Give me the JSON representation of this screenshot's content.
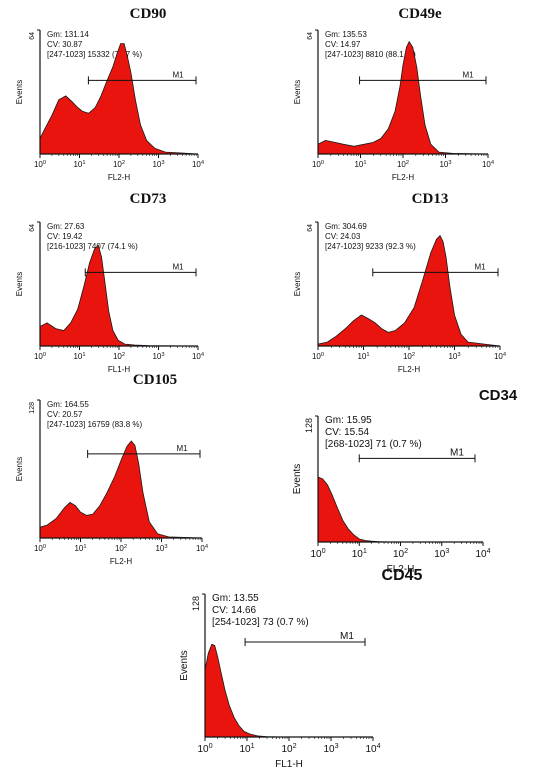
{
  "colors": {
    "fill": "#e8140d",
    "outline": "#1a1a1a",
    "axis": "#111111"
  },
  "chart_data": [
    {
      "type": "area",
      "title": "CD90",
      "xlabel": "FL2-H",
      "ylabel": "Events",
      "xscale": "log",
      "xlim": [
        1,
        10000
      ],
      "ylim": [
        0,
        64
      ],
      "ytick_top": "64",
      "stats": [
        "Gm: 131.14",
        "CV:  30.87",
        "[247-1023] 15332  (76.7 %)"
      ],
      "marker": {
        "label": "M1",
        "x_range": [
          16.8,
          10000
        ],
        "y": 38
      },
      "series": [
        {
          "x": [
            1.0,
            1.4,
            2.0,
            3.0,
            4.5,
            6.5,
            9.0,
            12.0,
            17.0,
            25.0,
            35.0,
            50.0,
            70.0,
            90.0,
            110.0,
            135.0,
            160.0,
            200.0,
            260.0,
            350.0,
            500.0,
            800.0,
            1500.0,
            4000.0,
            10000.0
          ],
          "y": [
            8,
            14,
            20,
            28,
            30,
            27,
            24,
            22,
            21,
            24,
            30,
            38,
            45,
            52,
            57,
            57,
            51,
            42,
            28,
            15,
            7,
            3,
            1,
            0.5,
            0
          ]
        }
      ]
    },
    {
      "type": "area",
      "title": "CD49e",
      "xlabel": "FL2-H",
      "ylabel": "Events",
      "xscale": "log",
      "xlim": [
        1,
        10000
      ],
      "ylim": [
        0,
        64
      ],
      "ytick_top": "64",
      "stats": [
        "Gm: 135.53",
        "CV:  14.97",
        "[247-1023] 8810  (88.1 %)"
      ],
      "marker": {
        "label": "M1",
        "x_range": [
          9.5,
          10000
        ],
        "y": 38
      },
      "series": [
        {
          "x": [
            1.0,
            1.5,
            2.5,
            4.0,
            7.0,
            12.0,
            20.0,
            30.0,
            45.0,
            65.0,
            85.0,
            100.0,
            120.0,
            140.0,
            170.0,
            210.0,
            260.0,
            330.0,
            450.0,
            700.0,
            1500.0,
            10000.0
          ],
          "y": [
            5,
            7,
            6,
            5,
            4,
            5,
            6,
            8,
            13,
            22,
            35,
            46,
            55,
            58,
            55,
            45,
            30,
            15,
            5,
            1,
            0.3,
            0
          ]
        }
      ]
    },
    {
      "type": "area",
      "title": "CD73",
      "xlabel": "FL1-H",
      "ylabel": "Events",
      "xscale": "log",
      "xlim": [
        1,
        10000
      ],
      "ylim": [
        0,
        64
      ],
      "ytick_top": "64",
      "stats": [
        "Gm:   27.63",
        "CV:  19.42",
        "[216-1023] 7407  (74.1 %)"
      ],
      "marker": {
        "label": "M1",
        "x_range": [
          14.0,
          10000
        ],
        "y": 38
      },
      "series": [
        {
          "x": [
            1.0,
            1.5,
            2.5,
            4.0,
            6.0,
            9.0,
            13.0,
            18.0,
            24.0,
            30.0,
            36.0,
            44.0,
            55.0,
            70.0,
            95.0,
            140.0,
            250.0,
            600.0,
            10000.0
          ],
          "y": [
            10,
            12,
            9,
            8,
            12,
            19,
            31,
            43,
            50,
            52,
            46,
            33,
            18,
            8,
            3,
            1,
            0.5,
            0.2,
            0
          ]
        }
      ]
    },
    {
      "type": "area",
      "title": "CD13",
      "xlabel": "FL2-H",
      "ylabel": "Events",
      "xscale": "log",
      "xlim": [
        1,
        10000
      ],
      "ylim": [
        0,
        64
      ],
      "ytick_top": "64",
      "stats": [
        "Gm: 304.69",
        "CV:  24.03",
        "[247-1023] 9233    (92.3 %)"
      ],
      "marker": {
        "label": "M1",
        "x_range": [
          16.0,
          10000
        ],
        "y": 38
      },
      "series": [
        {
          "x": [
            1.0,
            1.6,
            2.5,
            4.0,
            6.0,
            9.0,
            13.0,
            18.0,
            25.0,
            35.0,
            50.0,
            80.0,
            130.0,
            200.0,
            300.0,
            400.0,
            480.0,
            560.0,
            650.0,
            800.0,
            1000.0,
            1400.0,
            2000.0,
            10000.0
          ],
          "y": [
            1,
            2,
            5,
            9,
            13,
            16,
            14,
            12,
            9,
            7,
            8,
            12,
            20,
            34,
            48,
            55,
            57,
            54,
            46,
            30,
            16,
            6,
            2,
            0
          ]
        }
      ]
    },
    {
      "type": "area",
      "title": "CD105",
      "xlabel": "FL2-H",
      "ylabel": "Events",
      "xscale": "log",
      "xlim": [
        1,
        10000
      ],
      "ylim": [
        0,
        128
      ],
      "ytick_top": "128",
      "stats": [
        "Gm: 164.55",
        "CV:  20.57",
        "[247-1023] 16759  (83.8 %)"
      ],
      "marker": {
        "label": "M1",
        "x_range": [
          15.0,
          10000
        ],
        "y": 78
      },
      "series": [
        {
          "x": [
            1.0,
            1.5,
            2.5,
            4.0,
            5.5,
            7.5,
            10.0,
            14.0,
            20.0,
            30.0,
            45.0,
            70.0,
            100.0,
            140.0,
            180.0,
            220.0,
            270.0,
            350.0,
            500.0,
            800.0,
            1500.0,
            10000.0
          ],
          "y": [
            10,
            12,
            18,
            28,
            33,
            30,
            24,
            21,
            22,
            30,
            42,
            57,
            72,
            85,
            90,
            86,
            70,
            42,
            15,
            4,
            1,
            0
          ]
        }
      ]
    },
    {
      "type": "area",
      "title": "CD34",
      "xlabel": "FL2-H",
      "ylabel": "Events",
      "xscale": "log",
      "xlim": [
        1,
        10000
      ],
      "ylim": [
        0,
        128
      ],
      "ytick_top": "128",
      "stats": [
        "Gm:   15.95",
        "CV:   15.54",
        "[268-1023] 71      (0.7  %)"
      ],
      "marker": {
        "label": "M1",
        "x_range": [
          10.0,
          10000
        ],
        "y": 85
      },
      "series": [
        {
          "x": [
            1.0,
            1.3,
            1.7,
            2.2,
            3.0,
            4.0,
            5.5,
            7.5,
            10.0,
            14.0,
            20.0,
            30.0,
            60.0,
            10000.0
          ],
          "y": [
            66,
            64,
            58,
            48,
            34,
            22,
            13,
            7,
            3,
            1.5,
            0.8,
            0.3,
            0.1,
            0
          ]
        }
      ]
    },
    {
      "type": "area",
      "title": "CD45",
      "xlabel": "FL1-H",
      "ylabel": "Events",
      "xscale": "log",
      "xlim": [
        1,
        10000
      ],
      "ylim": [
        0,
        128
      ],
      "ytick_top": "128",
      "stats": [
        "Gm:   13.55",
        "CV:   14.66",
        "[254-1023] 73      (0.7  %)"
      ],
      "marker": {
        "label": "M1",
        "x_range": [
          9.0,
          10000
        ],
        "y": 85
      },
      "series": [
        {
          "x": [
            1.0,
            1.2,
            1.45,
            1.7,
            2.0,
            2.4,
            3.0,
            3.8,
            5.0,
            6.5,
            8.5,
            12.0,
            18.0,
            30.0,
            60.0,
            10000.0
          ],
          "y": [
            60,
            75,
            83,
            82,
            72,
            58,
            42,
            28,
            17,
            10,
            5,
            2.5,
            1,
            0.4,
            0.1,
            0
          ]
        }
      ]
    }
  ]
}
